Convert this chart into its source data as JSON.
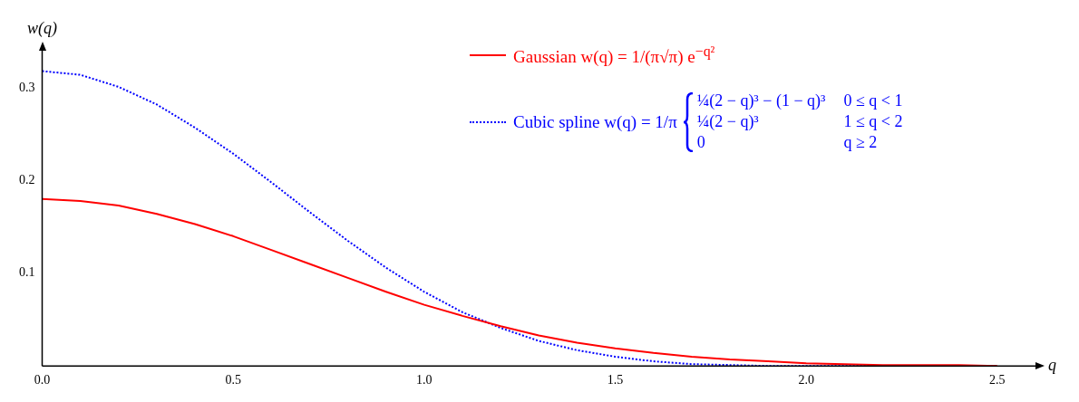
{
  "chart_data": {
    "type": "line",
    "xlabel": "q",
    "ylabel": "w(q)",
    "xlim": [
      0,
      2.6
    ],
    "ylim": [
      0,
      0.34
    ],
    "xticks": [
      {
        "value": 0,
        "label": "0.0"
      },
      {
        "value": 0.5,
        "label": "0.5"
      },
      {
        "value": 1,
        "label": "1.0"
      },
      {
        "value": 1.5,
        "label": "1.5"
      },
      {
        "value": 2,
        "label": "2.0"
      },
      {
        "value": 2.5,
        "label": "2.5"
      }
    ],
    "yticks": [
      0.1,
      0.2,
      0.3
    ],
    "grid": false,
    "legend": "top right",
    "series": [
      {
        "name": "Gaussian w(q) = 1/(π√π) e$^{−q²}$",
        "color": "#ff0000",
        "line_style": "solid",
        "x": [
          0,
          0.1,
          0.2,
          0.3,
          0.4,
          0.5,
          0.6,
          0.7,
          0.8,
          0.9,
          1.0,
          1.1,
          1.2,
          1.3,
          1.4,
          1.5,
          1.6,
          1.7,
          1.8,
          1.9,
          2.0,
          2.2,
          2.4,
          2.5
        ],
        "values": [
          0.18,
          0.178,
          0.173,
          0.164,
          0.153,
          0.14,
          0.125,
          0.11,
          0.095,
          0.08,
          0.066,
          0.054,
          0.043,
          0.033,
          0.025,
          0.019,
          0.014,
          0.01,
          0.007,
          0.005,
          0.003,
          0.001,
          0.001,
          0.0
        ]
      },
      {
        "name": "Cubic spline w(q) = 1/π",
        "color": "#0000ff",
        "line_style": "dotted",
        "x": [
          0,
          0.1,
          0.2,
          0.3,
          0.4,
          0.5,
          0.6,
          0.7,
          0.8,
          0.9,
          1.0,
          1.1,
          1.2,
          1.3,
          1.4,
          1.5,
          1.6,
          1.7,
          1.8,
          1.9,
          2.0,
          2.5
        ],
        "values": [
          0.318,
          0.314,
          0.301,
          0.282,
          0.257,
          0.229,
          0.198,
          0.166,
          0.135,
          0.106,
          0.08,
          0.058,
          0.041,
          0.027,
          0.017,
          0.01,
          0.005,
          0.002,
          0.001,
          0.0,
          0.0,
          0.0
        ]
      }
    ],
    "annotations": [
      "¼(2 − q)³ − (1 − q)³",
      "0 ≤ q < 1",
      "¼(2 − q)³",
      "1 ≤ q < 2",
      "0",
      "q ≥ 2"
    ]
  }
}
